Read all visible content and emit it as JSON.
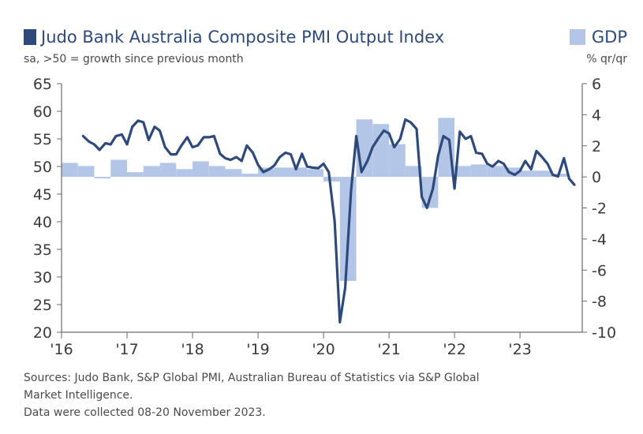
{
  "legend": {
    "pmi_label": "Judo Bank Australia Composite PMI Output Index",
    "gdp_label": "GDP"
  },
  "subtitle": "sa, >50 = growth since previous month",
  "y2_unit": "% qr/qr",
  "sources": [
    "Sources: Judo Bank, S&P Global PMI, Australian Bureau of Statistics via S&P Global",
    "Market Intelligence.",
    "Data were collected 08-20 November 2023."
  ],
  "colors": {
    "pmi_line": "#2e4a7a",
    "gdp_bar": "#b4c6e7",
    "axis": "#6b6b6b"
  },
  "chart_data": {
    "type": "line+bar",
    "x_ticks": [
      "'16",
      "'17",
      "'18",
      "'19",
      "'20",
      "'21",
      "'22",
      "'23"
    ],
    "xlim": [
      2016.0,
      2023.95
    ],
    "y_left": {
      "range": [
        20,
        65
      ],
      "ticks": [
        "20",
        "25",
        "30",
        "35",
        "40",
        "45",
        "50",
        "55",
        "60",
        "65"
      ]
    },
    "y_right": {
      "range": [
        -10,
        6
      ],
      "ticks": [
        "-10",
        "-8",
        "-6",
        "-4",
        "-2",
        "0",
        "2",
        "4",
        "6"
      ]
    },
    "series": [
      {
        "name": "Judo Bank Australia Composite PMI Output Index",
        "axis": "left",
        "type": "line",
        "points": [
          [
            2016.33,
            55.5
          ],
          [
            2016.42,
            54.5
          ],
          [
            2016.5,
            54.0
          ],
          [
            2016.58,
            53.0
          ],
          [
            2016.67,
            54.2
          ],
          [
            2016.75,
            54.0
          ],
          [
            2016.83,
            55.5
          ],
          [
            2016.92,
            55.8
          ],
          [
            2017.0,
            54.0
          ],
          [
            2017.08,
            57.2
          ],
          [
            2017.17,
            58.3
          ],
          [
            2017.25,
            58.0
          ],
          [
            2017.33,
            54.8
          ],
          [
            2017.42,
            57.2
          ],
          [
            2017.5,
            56.5
          ],
          [
            2017.58,
            53.5
          ],
          [
            2017.67,
            52.2
          ],
          [
            2017.75,
            52.2
          ],
          [
            2017.83,
            53.8
          ],
          [
            2017.92,
            55.3
          ],
          [
            2018.0,
            53.5
          ],
          [
            2018.08,
            53.8
          ],
          [
            2018.17,
            55.3
          ],
          [
            2018.25,
            55.3
          ],
          [
            2018.33,
            55.5
          ],
          [
            2018.42,
            52.3
          ],
          [
            2018.5,
            51.5
          ],
          [
            2018.58,
            51.2
          ],
          [
            2018.67,
            51.7
          ],
          [
            2018.75,
            51.0
          ],
          [
            2018.83,
            53.8
          ],
          [
            2018.92,
            52.5
          ],
          [
            2019.0,
            50.3
          ],
          [
            2019.08,
            49.0
          ],
          [
            2019.17,
            49.5
          ],
          [
            2019.25,
            50.2
          ],
          [
            2019.33,
            51.7
          ],
          [
            2019.42,
            52.5
          ],
          [
            2019.5,
            52.2
          ],
          [
            2019.58,
            49.5
          ],
          [
            2019.67,
            52.3
          ],
          [
            2019.75,
            50.0
          ],
          [
            2019.83,
            49.8
          ],
          [
            2019.92,
            49.7
          ],
          [
            2020.0,
            50.5
          ],
          [
            2020.08,
            49.0
          ],
          [
            2020.17,
            40.0
          ],
          [
            2020.25,
            21.8
          ],
          [
            2020.33,
            28.0
          ],
          [
            2020.42,
            45.5
          ],
          [
            2020.5,
            55.5
          ],
          [
            2020.58,
            49.0
          ],
          [
            2020.67,
            51.0
          ],
          [
            2020.75,
            53.5
          ],
          [
            2020.83,
            55.0
          ],
          [
            2020.92,
            56.5
          ],
          [
            2021.0,
            56.0
          ],
          [
            2021.08,
            53.5
          ],
          [
            2021.17,
            55.0
          ],
          [
            2021.25,
            58.5
          ],
          [
            2021.33,
            58.0
          ],
          [
            2021.42,
            56.8
          ],
          [
            2021.5,
            44.5
          ],
          [
            2021.58,
            42.5
          ],
          [
            2021.67,
            46.0
          ],
          [
            2021.75,
            52.0
          ],
          [
            2021.83,
            55.5
          ],
          [
            2021.92,
            54.8
          ],
          [
            2022.0,
            46.0
          ],
          [
            2022.08,
            56.3
          ],
          [
            2022.17,
            55.0
          ],
          [
            2022.25,
            55.5
          ],
          [
            2022.33,
            52.5
          ],
          [
            2022.42,
            52.3
          ],
          [
            2022.5,
            50.5
          ],
          [
            2022.58,
            50.0
          ],
          [
            2022.67,
            51.0
          ],
          [
            2022.75,
            50.5
          ],
          [
            2022.83,
            49.0
          ],
          [
            2022.92,
            48.5
          ],
          [
            2023.0,
            49.2
          ],
          [
            2023.08,
            51.0
          ],
          [
            2023.17,
            49.5
          ],
          [
            2023.25,
            52.8
          ],
          [
            2023.33,
            51.8
          ],
          [
            2023.42,
            50.5
          ],
          [
            2023.5,
            48.5
          ],
          [
            2023.58,
            48.2
          ],
          [
            2023.67,
            51.5
          ],
          [
            2023.75,
            47.8
          ],
          [
            2023.83,
            46.7
          ]
        ]
      },
      {
        "name": "GDP",
        "axis": "right",
        "type": "bar",
        "bar_width": 0.25,
        "points": [
          [
            2016.125,
            0.9
          ],
          [
            2016.375,
            0.7
          ],
          [
            2016.625,
            -0.1
          ],
          [
            2016.875,
            1.1
          ],
          [
            2017.125,
            0.3
          ],
          [
            2017.375,
            0.7
          ],
          [
            2017.625,
            0.9
          ],
          [
            2017.875,
            0.5
          ],
          [
            2018.125,
            1.0
          ],
          [
            2018.375,
            0.7
          ],
          [
            2018.625,
            0.5
          ],
          [
            2018.875,
            0.2
          ],
          [
            2019.125,
            0.6
          ],
          [
            2019.375,
            0.6
          ],
          [
            2019.625,
            0.6
          ],
          [
            2019.875,
            0.5
          ],
          [
            2020.125,
            -0.3
          ],
          [
            2020.375,
            -6.7
          ],
          [
            2020.625,
            3.7
          ],
          [
            2020.875,
            3.4
          ],
          [
            2021.125,
            2.1
          ],
          [
            2021.375,
            0.7
          ],
          [
            2021.625,
            -2.0
          ],
          [
            2021.875,
            3.8
          ],
          [
            2022.125,
            0.7
          ],
          [
            2022.375,
            0.8
          ],
          [
            2022.625,
            0.7
          ],
          [
            2022.875,
            0.6
          ],
          [
            2023.125,
            0.4
          ],
          [
            2023.375,
            0.4
          ],
          [
            2023.625,
            0.2
          ]
        ]
      }
    ]
  }
}
